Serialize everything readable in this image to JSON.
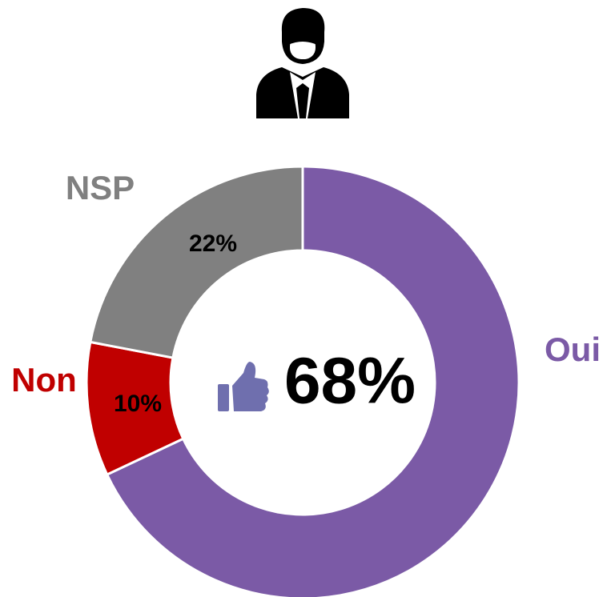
{
  "chart_data": {
    "type": "donut",
    "categories": [
      "Oui",
      "Non",
      "NSP"
    ],
    "values": [
      68,
      10,
      22
    ],
    "value_labels": [
      "68%",
      "10%",
      "22%"
    ],
    "colors": [
      "#7b5aa6",
      "#c00000",
      "#808080"
    ]
  }
}
